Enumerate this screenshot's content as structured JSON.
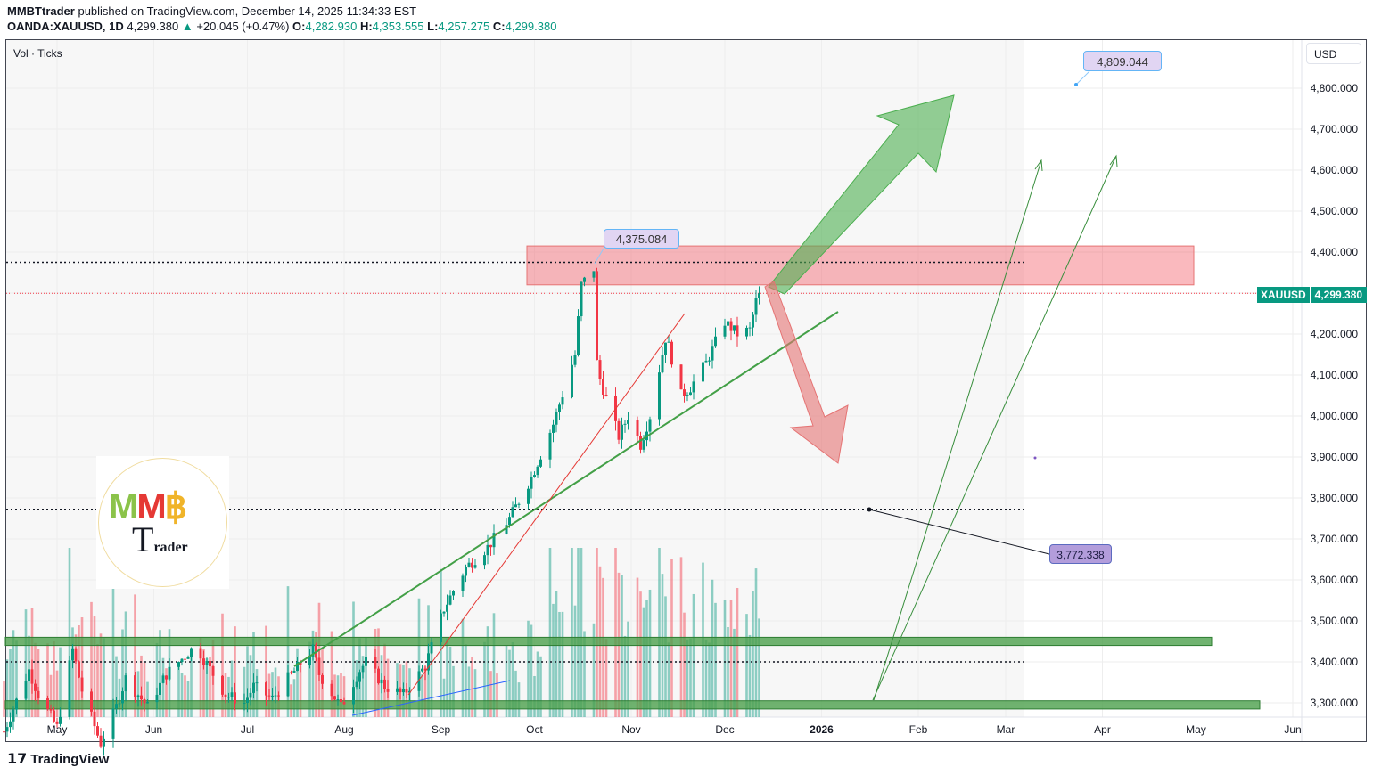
{
  "header": {
    "author": "MMBTtrader",
    "published": "published on TradingView.com, December 14, 2025 11:34:33 EST",
    "symbol": "OANDA:XAUUSD, 1D",
    "last": "4,299.380",
    "change": "+20.045 (+0.47%)",
    "o_label": "O:",
    "o": "4,282.930",
    "h_label": "H:",
    "h": "4,353.555",
    "l_label": "L:",
    "l": "4,257.275",
    "c_label": "C:",
    "c": "4,299.380"
  },
  "indicator_label": "Vol · Ticks",
  "currency": "USD",
  "price_tag": {
    "symbol": "XAUUSD",
    "price": "4,299.380",
    "color": "#089981"
  },
  "annotations": {
    "peak": "4,375.084",
    "target": "4,809.044",
    "support": "3,772.338"
  },
  "logo_text": "MMB Trader",
  "footer": "TradingView",
  "colors": {
    "up": "#089981",
    "down": "#f23645",
    "zone_red": "#f7a1a6",
    "zone_green": "#66a866",
    "arrow_green": "#4caf50",
    "arrow_red": "#e57373"
  },
  "chart_data": {
    "type": "candlestick",
    "title": "OANDA:XAUUSD, 1D",
    "ylim": [
      3260,
      4880
    ],
    "y_ticks": [
      "4,800.000",
      "4,700.000",
      "4,600.000",
      "4,500.000",
      "4,400.000",
      "4,300.000",
      "4,200.000",
      "4,100.000",
      "4,000.000",
      "3,900.000",
      "3,800.000",
      "3,700.000",
      "3,600.000",
      "3,500.000",
      "3,400.000",
      "3,300.000"
    ],
    "y_tick_values": [
      4800,
      4700,
      4600,
      4500,
      4400,
      4300,
      4200,
      4100,
      4000,
      3900,
      3800,
      3700,
      3600,
      3500,
      3400,
      3300
    ],
    "x_ticks": [
      "May",
      "Jun",
      "Jul",
      "Aug",
      "Sep",
      "Oct",
      "Nov",
      "Dec",
      "2026",
      "Feb",
      "Mar",
      "Apr",
      "May",
      "Jun"
    ],
    "x_tick_dates": [
      "2025-05-01",
      "2025-06-01",
      "2025-07-01",
      "2025-08-01",
      "2025-09-01",
      "2025-10-01",
      "2025-11-01",
      "2025-12-01",
      "2026-01-01",
      "2026-02-01",
      "2026-03-01",
      "2026-04-01",
      "2026-05-01",
      "2026-06-01"
    ],
    "close_keypoints": [
      [
        "2025-04-14",
        3230
      ],
      [
        "2025-04-22",
        3380
      ],
      [
        "2025-04-25",
        3320
      ],
      [
        "2025-05-01",
        3240
      ],
      [
        "2025-05-06",
        3430
      ],
      [
        "2025-05-09",
        3330
      ],
      [
        "2025-05-15",
        3200
      ],
      [
        "2025-05-20",
        3290
      ],
      [
        "2025-05-23",
        3360
      ],
      [
        "2025-05-30",
        3290
      ],
      [
        "2025-06-05",
        3370
      ],
      [
        "2025-06-13",
        3430
      ],
      [
        "2025-06-16",
        3420
      ],
      [
        "2025-06-24",
        3320
      ],
      [
        "2025-06-30",
        3300
      ],
      [
        "2025-07-03",
        3340
      ],
      [
        "2025-07-09",
        3310
      ],
      [
        "2025-07-14",
        3360
      ],
      [
        "2025-07-22",
        3430
      ],
      [
        "2025-07-24",
        3370
      ],
      [
        "2025-07-31",
        3290
      ],
      [
        "2025-08-06",
        3380
      ],
      [
        "2025-08-08",
        3400
      ],
      [
        "2025-08-14",
        3340
      ],
      [
        "2025-08-20",
        3320
      ],
      [
        "2025-08-27",
        3390
      ],
      [
        "2025-09-02",
        3530
      ],
      [
        "2025-09-09",
        3630
      ],
      [
        "2025-09-16",
        3680
      ],
      [
        "2025-09-23",
        3750
      ],
      [
        "2025-09-30",
        3850
      ],
      [
        "2025-10-07",
        3980
      ],
      [
        "2025-10-14",
        4150
      ],
      [
        "2025-10-16",
        4320
      ],
      [
        "2025-10-20",
        4360
      ],
      [
        "2025-10-21",
        4130
      ],
      [
        "2025-10-22",
        4090
      ],
      [
        "2025-10-28",
        3950
      ],
      [
        "2025-10-31",
        4000
      ],
      [
        "2025-11-04",
        3930
      ],
      [
        "2025-11-07",
        4000
      ],
      [
        "2025-11-12",
        4190
      ],
      [
        "2025-11-13",
        4170
      ],
      [
        "2025-11-17",
        4050
      ],
      [
        "2025-11-20",
        4070
      ],
      [
        "2025-11-25",
        4130
      ],
      [
        "2025-12-01",
        4230
      ],
      [
        "2025-12-05",
        4200
      ],
      [
        "2025-12-09",
        4210
      ],
      [
        "2025-12-11",
        4280
      ],
      [
        "2025-12-12",
        4299.38
      ]
    ],
    "levels": {
      "resistance_dotted": 4375.084,
      "support_dotted": 3772.338,
      "low_dotted": 3400,
      "current": 4299.38
    },
    "zones": [
      {
        "type": "resistance",
        "from": 4320,
        "to": 4415
      },
      {
        "type": "support",
        "from": 3440,
        "to": 3460
      },
      {
        "type": "support",
        "from": 3285,
        "to": 3305
      }
    ],
    "grid": true
  }
}
